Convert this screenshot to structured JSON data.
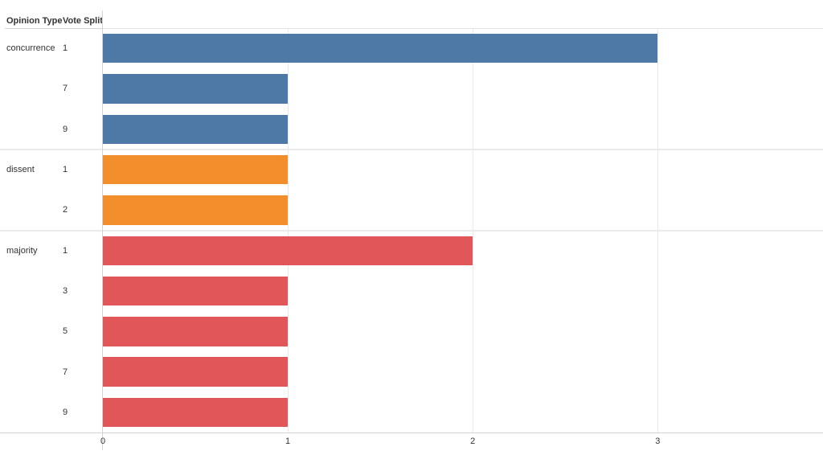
{
  "header": {
    "opinion_type": "Opinion Type",
    "vote_split": "Vote Split"
  },
  "chart_data": {
    "type": "bar",
    "orientation": "horizontal",
    "title": "",
    "xlabel": "",
    "ylabel": "",
    "x_axis": {
      "tick_labels": [
        "0",
        "1",
        "2",
        "3"
      ],
      "tick_values": [
        0,
        1,
        2,
        3
      ],
      "range": [
        0,
        3.9
      ],
      "gridlines": true
    },
    "row_header_columns": [
      "Opinion Type",
      "Vote Split"
    ],
    "groups": [
      {
        "opinion_type": "concurrence",
        "color": "#4e79a7",
        "rows": [
          {
            "vote_split": "1",
            "value": 3
          },
          {
            "vote_split": "7",
            "value": 1
          },
          {
            "vote_split": "9",
            "value": 1
          }
        ]
      },
      {
        "opinion_type": "dissent",
        "color": "#f28e2b",
        "rows": [
          {
            "vote_split": "1",
            "value": 1
          },
          {
            "vote_split": "2",
            "value": 1
          }
        ]
      },
      {
        "opinion_type": "majority",
        "color": "#e15759",
        "rows": [
          {
            "vote_split": "1",
            "value": 2
          },
          {
            "vote_split": "3",
            "value": 1
          },
          {
            "vote_split": "5",
            "value": 1
          },
          {
            "vote_split": "7",
            "value": 1
          },
          {
            "vote_split": "9",
            "value": 1
          }
        ]
      }
    ]
  },
  "colors": {
    "text": "#333333",
    "axis_line": "#d4d4d4",
    "header_underline": "#d4d4d4",
    "plot_top_border": "#e3e3e3",
    "gridline": "#e9e9e9",
    "group_separator": "#eaeaea",
    "background": "#ffffff"
  }
}
